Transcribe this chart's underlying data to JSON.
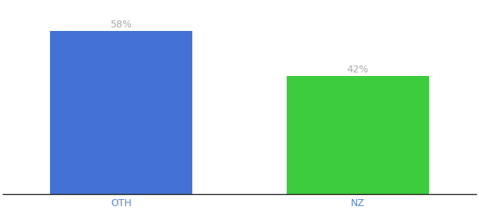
{
  "categories": [
    "OTH",
    "NZ"
  ],
  "values": [
    58,
    42
  ],
  "bar_colors": [
    "#4472d4",
    "#3dcc3d"
  ],
  "label_texts": [
    "58%",
    "42%"
  ],
  "background_color": "#ffffff",
  "ylim": [
    0,
    68
  ],
  "bar_width": 0.6,
  "label_color": "#aaaaaa",
  "label_fontsize": 10,
  "tick_fontsize": 10,
  "tick_color": "#5588cc"
}
